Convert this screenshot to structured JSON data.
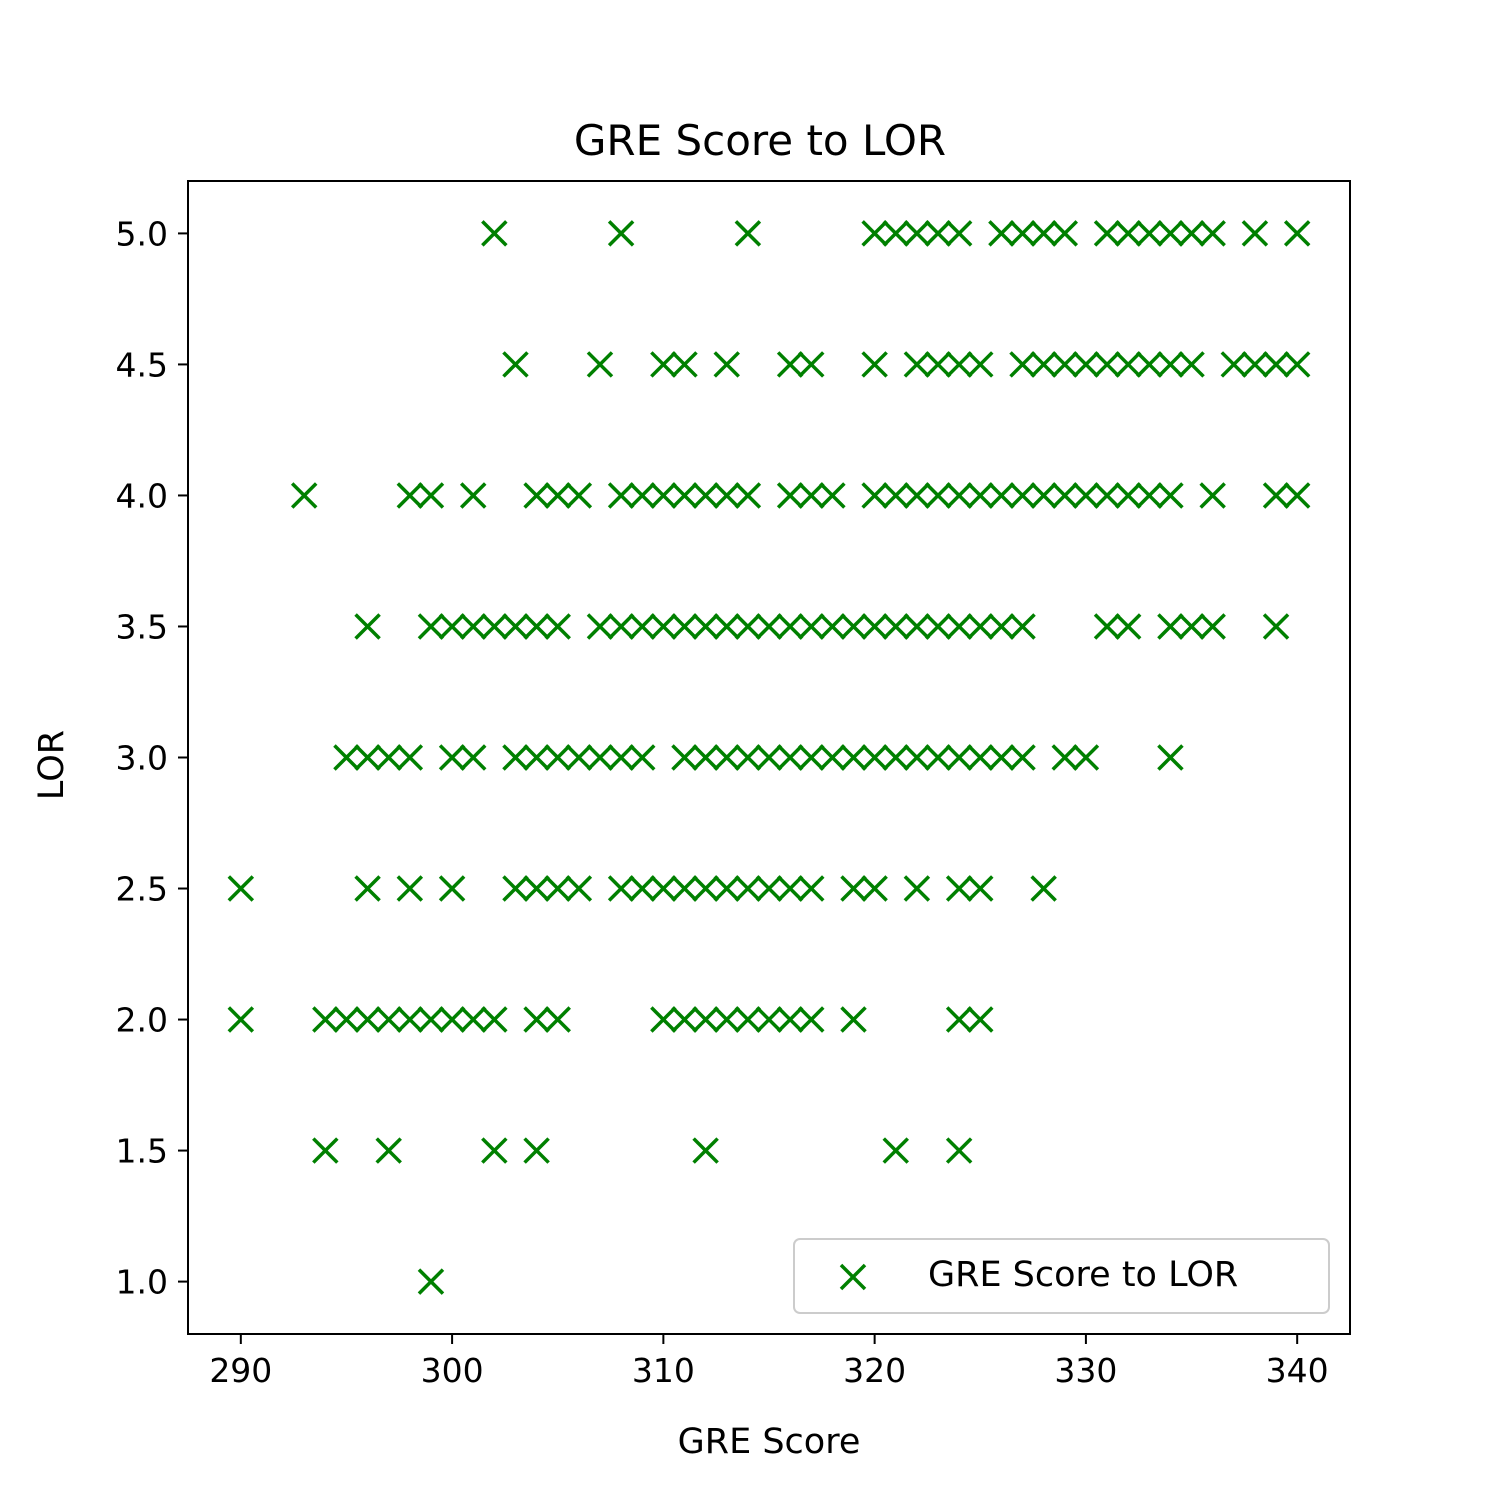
{
  "chart_data": {
    "type": "scatter",
    "title": "GRE Score to LOR",
    "xlabel": "GRE Score",
    "ylabel": "LOR",
    "xlim": [
      287.5,
      342.5
    ],
    "ylim": [
      0.8,
      5.2
    ],
    "xticks": [
      290,
      300,
      310,
      320,
      330,
      340
    ],
    "yticks": [
      1.0,
      1.5,
      2.0,
      2.5,
      3.0,
      3.5,
      4.0,
      4.5,
      5.0
    ],
    "grid": false,
    "legend_position": "lower-right",
    "marker": "x",
    "color": "#008000",
    "series": [
      {
        "name": "GRE Score to LOR",
        "points": [
          [
            302,
            5.0
          ],
          [
            308,
            5.0
          ],
          [
            314,
            5.0
          ],
          [
            320,
            5.0
          ],
          [
            321,
            5.0
          ],
          [
            322,
            5.0
          ],
          [
            323,
            5.0
          ],
          [
            324,
            5.0
          ],
          [
            326,
            5.0
          ],
          [
            327,
            5.0
          ],
          [
            328,
            5.0
          ],
          [
            329,
            5.0
          ],
          [
            331,
            5.0
          ],
          [
            332,
            5.0
          ],
          [
            333,
            5.0
          ],
          [
            334,
            5.0
          ],
          [
            335,
            5.0
          ],
          [
            336,
            5.0
          ],
          [
            338,
            5.0
          ],
          [
            340,
            5.0
          ],
          [
            303,
            4.5
          ],
          [
            307,
            4.5
          ],
          [
            310,
            4.5
          ],
          [
            311,
            4.5
          ],
          [
            313,
            4.5
          ],
          [
            316,
            4.5
          ],
          [
            317,
            4.5
          ],
          [
            320,
            4.5
          ],
          [
            322,
            4.5
          ],
          [
            323,
            4.5
          ],
          [
            324,
            4.5
          ],
          [
            325,
            4.5
          ],
          [
            327,
            4.5
          ],
          [
            328,
            4.5
          ],
          [
            329,
            4.5
          ],
          [
            330,
            4.5
          ],
          [
            331,
            4.5
          ],
          [
            332,
            4.5
          ],
          [
            333,
            4.5
          ],
          [
            334,
            4.5
          ],
          [
            335,
            4.5
          ],
          [
            337,
            4.5
          ],
          [
            338,
            4.5
          ],
          [
            339,
            4.5
          ],
          [
            340,
            4.5
          ],
          [
            293,
            4.0
          ],
          [
            298,
            4.0
          ],
          [
            299,
            4.0
          ],
          [
            301,
            4.0
          ],
          [
            304,
            4.0
          ],
          [
            305,
            4.0
          ],
          [
            306,
            4.0
          ],
          [
            308,
            4.0
          ],
          [
            309,
            4.0
          ],
          [
            310,
            4.0
          ],
          [
            311,
            4.0
          ],
          [
            312,
            4.0
          ],
          [
            313,
            4.0
          ],
          [
            314,
            4.0
          ],
          [
            316,
            4.0
          ],
          [
            317,
            4.0
          ],
          [
            318,
            4.0
          ],
          [
            320,
            4.0
          ],
          [
            321,
            4.0
          ],
          [
            322,
            4.0
          ],
          [
            323,
            4.0
          ],
          [
            324,
            4.0
          ],
          [
            325,
            4.0
          ],
          [
            326,
            4.0
          ],
          [
            327,
            4.0
          ],
          [
            328,
            4.0
          ],
          [
            329,
            4.0
          ],
          [
            330,
            4.0
          ],
          [
            331,
            4.0
          ],
          [
            332,
            4.0
          ],
          [
            333,
            4.0
          ],
          [
            334,
            4.0
          ],
          [
            336,
            4.0
          ],
          [
            339,
            4.0
          ],
          [
            340,
            4.0
          ],
          [
            296,
            3.5
          ],
          [
            299,
            3.5
          ],
          [
            300,
            3.5
          ],
          [
            301,
            3.5
          ],
          [
            302,
            3.5
          ],
          [
            303,
            3.5
          ],
          [
            304,
            3.5
          ],
          [
            305,
            3.5
          ],
          [
            307,
            3.5
          ],
          [
            308,
            3.5
          ],
          [
            309,
            3.5
          ],
          [
            310,
            3.5
          ],
          [
            311,
            3.5
          ],
          [
            312,
            3.5
          ],
          [
            313,
            3.5
          ],
          [
            314,
            3.5
          ],
          [
            315,
            3.5
          ],
          [
            316,
            3.5
          ],
          [
            317,
            3.5
          ],
          [
            318,
            3.5
          ],
          [
            319,
            3.5
          ],
          [
            320,
            3.5
          ],
          [
            321,
            3.5
          ],
          [
            322,
            3.5
          ],
          [
            323,
            3.5
          ],
          [
            324,
            3.5
          ],
          [
            325,
            3.5
          ],
          [
            326,
            3.5
          ],
          [
            327,
            3.5
          ],
          [
            331,
            3.5
          ],
          [
            332,
            3.5
          ],
          [
            334,
            3.5
          ],
          [
            335,
            3.5
          ],
          [
            336,
            3.5
          ],
          [
            339,
            3.5
          ],
          [
            295,
            3.0
          ],
          [
            296,
            3.0
          ],
          [
            297,
            3.0
          ],
          [
            298,
            3.0
          ],
          [
            300,
            3.0
          ],
          [
            301,
            3.0
          ],
          [
            303,
            3.0
          ],
          [
            304,
            3.0
          ],
          [
            305,
            3.0
          ],
          [
            306,
            3.0
          ],
          [
            307,
            3.0
          ],
          [
            308,
            3.0
          ],
          [
            309,
            3.0
          ],
          [
            311,
            3.0
          ],
          [
            312,
            3.0
          ],
          [
            313,
            3.0
          ],
          [
            314,
            3.0
          ],
          [
            315,
            3.0
          ],
          [
            316,
            3.0
          ],
          [
            317,
            3.0
          ],
          [
            318,
            3.0
          ],
          [
            319,
            3.0
          ],
          [
            320,
            3.0
          ],
          [
            321,
            3.0
          ],
          [
            322,
            3.0
          ],
          [
            323,
            3.0
          ],
          [
            324,
            3.0
          ],
          [
            325,
            3.0
          ],
          [
            326,
            3.0
          ],
          [
            327,
            3.0
          ],
          [
            329,
            3.0
          ],
          [
            330,
            3.0
          ],
          [
            334,
            3.0
          ],
          [
            290,
            2.5
          ],
          [
            296,
            2.5
          ],
          [
            298,
            2.5
          ],
          [
            300,
            2.5
          ],
          [
            303,
            2.5
          ],
          [
            304,
            2.5
          ],
          [
            305,
            2.5
          ],
          [
            306,
            2.5
          ],
          [
            308,
            2.5
          ],
          [
            309,
            2.5
          ],
          [
            310,
            2.5
          ],
          [
            311,
            2.5
          ],
          [
            312,
            2.5
          ],
          [
            313,
            2.5
          ],
          [
            314,
            2.5
          ],
          [
            315,
            2.5
          ],
          [
            316,
            2.5
          ],
          [
            317,
            2.5
          ],
          [
            319,
            2.5
          ],
          [
            320,
            2.5
          ],
          [
            322,
            2.5
          ],
          [
            324,
            2.5
          ],
          [
            325,
            2.5
          ],
          [
            328,
            2.5
          ],
          [
            290,
            2.0
          ],
          [
            294,
            2.0
          ],
          [
            295,
            2.0
          ],
          [
            296,
            2.0
          ],
          [
            297,
            2.0
          ],
          [
            298,
            2.0
          ],
          [
            299,
            2.0
          ],
          [
            300,
            2.0
          ],
          [
            301,
            2.0
          ],
          [
            302,
            2.0
          ],
          [
            304,
            2.0
          ],
          [
            305,
            2.0
          ],
          [
            310,
            2.0
          ],
          [
            311,
            2.0
          ],
          [
            312,
            2.0
          ],
          [
            313,
            2.0
          ],
          [
            314,
            2.0
          ],
          [
            315,
            2.0
          ],
          [
            316,
            2.0
          ],
          [
            317,
            2.0
          ],
          [
            319,
            2.0
          ],
          [
            324,
            2.0
          ],
          [
            325,
            2.0
          ],
          [
            294,
            1.5
          ],
          [
            297,
            1.5
          ],
          [
            302,
            1.5
          ],
          [
            304,
            1.5
          ],
          [
            312,
            1.5
          ],
          [
            321,
            1.5
          ],
          [
            324,
            1.5
          ],
          [
            299,
            1.0
          ]
        ]
      }
    ]
  }
}
